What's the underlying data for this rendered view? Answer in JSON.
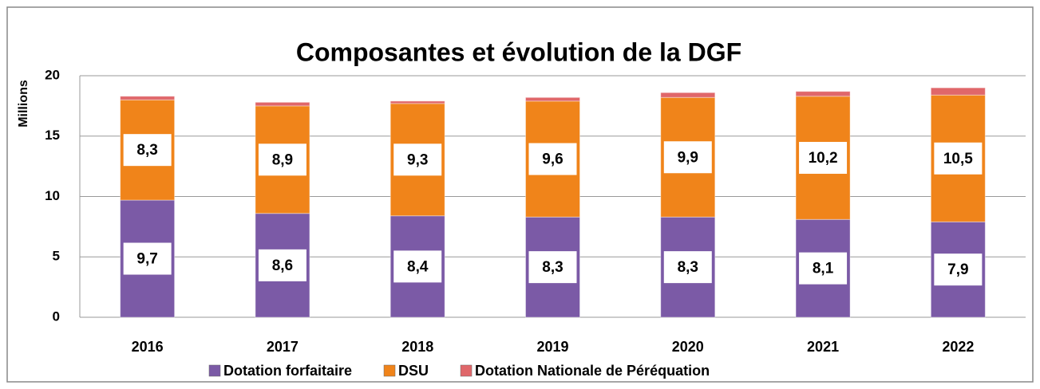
{
  "chart_data": {
    "type": "stacked_bar",
    "title": "Composantes et évolution de la DGF",
    "y_label": "Millions",
    "categories": [
      "2016",
      "2017",
      "2018",
      "2019",
      "2020",
      "2021",
      "2022"
    ],
    "series": [
      {
        "name": "Dotation forfaitaire",
        "color": "#7b5aa6",
        "values": [
          9.7,
          8.6,
          8.4,
          8.3,
          8.3,
          8.1,
          7.9
        ],
        "value_labels": [
          "9,7",
          "8,6",
          "8,4",
          "8,3",
          "8,3",
          "8,1",
          "7,9"
        ]
      },
      {
        "name": "DSU",
        "color": "#f0841a",
        "values": [
          8.3,
          8.9,
          9.3,
          9.6,
          9.9,
          10.2,
          10.5
        ],
        "value_labels": [
          "8,3",
          "8,9",
          "9,3",
          "9,6",
          "9,9",
          "10,2",
          "10,5"
        ]
      },
      {
        "name": "Dotation Nationale de Péréquation",
        "color": "#e0676a",
        "values": [
          0.3,
          0.3,
          0.2,
          0.3,
          0.4,
          0.4,
          0.6
        ]
      }
    ],
    "ylim": [
      0,
      20
    ],
    "yticks": [
      0,
      5,
      10,
      15,
      20
    ],
    "grid": true,
    "legend": "bottom"
  }
}
